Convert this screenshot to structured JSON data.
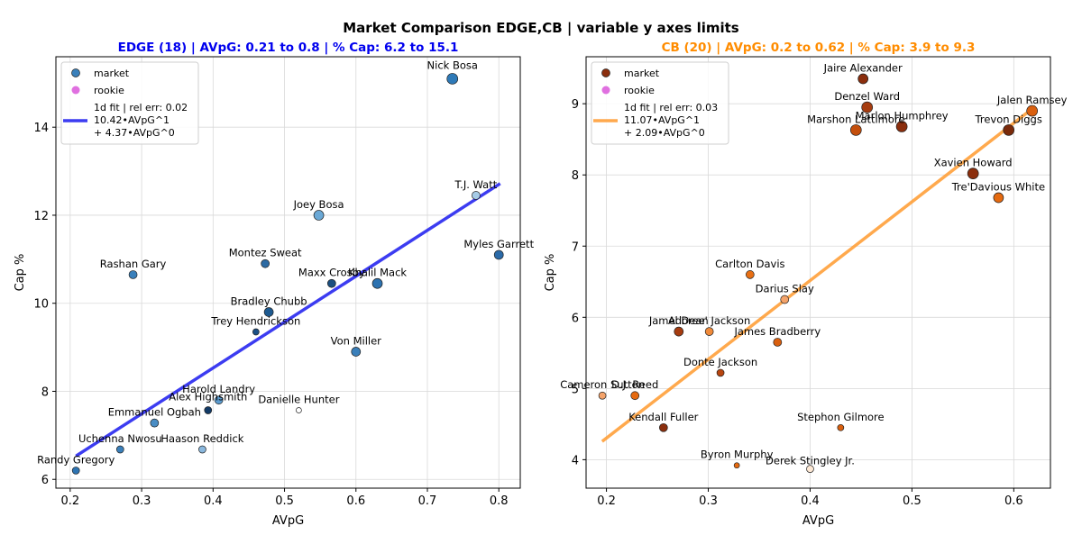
{
  "figure": {
    "title": "Market Comparison EDGE,CB | variable y axes limits"
  },
  "chart_data": [
    {
      "type": "scatter",
      "title": "EDGE (18) | AVpG: 0.21 to 0.8 | % Cap: 6.2 to 15.1",
      "title_color": "#0000ee",
      "xlabel": "AVpG",
      "ylabel": "Cap %",
      "xlim": [
        0.18,
        0.83
      ],
      "ylim": [
        5.8,
        15.6
      ],
      "xticks": [
        0.2,
        0.3,
        0.4,
        0.5,
        0.6,
        0.7,
        0.8
      ],
      "yticks": [
        6,
        8,
        10,
        12,
        14
      ],
      "grid": true,
      "legend_position": "upper left",
      "legend": {
        "market": "market",
        "rookie": "rookie",
        "fit_lines": [
          "1d fit | rel err: 0.02",
          "10.42•AVpG^1",
          "+ 4.37•AVpG^0"
        ]
      },
      "fit": {
        "color": "#1a1aee",
        "x": [
          0.21,
          0.8
        ],
        "y": [
          6.55,
          12.7
        ]
      },
      "points": [
        {
          "name": "Nick Bosa",
          "x": 0.735,
          "y": 15.1,
          "color": "#2e7ab8"
        },
        {
          "name": "T.J. Watt",
          "x": 0.768,
          "y": 12.45,
          "color": "#a6cbe6"
        },
        {
          "name": "Joey Bosa",
          "x": 0.548,
          "y": 12.0,
          "color": "#6aa8d6"
        },
        {
          "name": "Myles Garrett",
          "x": 0.8,
          "y": 11.1,
          "color": "#2a6aa8"
        },
        {
          "name": "Rashan Gary",
          "x": 0.288,
          "y": 10.65,
          "color": "#3a80bb"
        },
        {
          "name": "Montez Sweat",
          "x": 0.473,
          "y": 10.9,
          "color": "#2c6aa3"
        },
        {
          "name": "Maxx Crosby",
          "x": 0.566,
          "y": 10.45,
          "color": "#1c4f80"
        },
        {
          "name": "Khalil Mack",
          "x": 0.63,
          "y": 10.45,
          "color": "#2c72b0"
        },
        {
          "name": "Bradley Chubb",
          "x": 0.478,
          "y": 9.8,
          "color": "#1e5a90"
        },
        {
          "name": "Trey Hendrickson",
          "x": 0.46,
          "y": 9.35,
          "color": "#1a4f86"
        },
        {
          "name": "Von Miller",
          "x": 0.6,
          "y": 8.9,
          "color": "#3a7fba"
        },
        {
          "name": "Harold Landry",
          "x": 0.408,
          "y": 7.8,
          "color": "#5b9bcf"
        },
        {
          "name": "Alex Highsmith",
          "x": 0.393,
          "y": 7.57,
          "color": "#123a66"
        },
        {
          "name": "Danielle Hunter",
          "x": 0.52,
          "y": 7.57,
          "color": "#ffffff"
        },
        {
          "name": "Emmanuel Ogbah",
          "x": 0.318,
          "y": 7.28,
          "color": "#4a8dc4"
        },
        {
          "name": "Uchenna Nwosu",
          "x": 0.27,
          "y": 6.68,
          "color": "#3a7fba"
        },
        {
          "name": "Haason Reddick",
          "x": 0.385,
          "y": 6.68,
          "color": "#8ab8de"
        },
        {
          "name": "Randy Gregory",
          "x": 0.208,
          "y": 6.2,
          "color": "#2e74b2"
        }
      ]
    },
    {
      "type": "scatter",
      "title": "CB (20) | AVpG: 0.2 to 0.62 | % Cap: 3.9 to 9.3",
      "title_color": "#ff8c00",
      "xlabel": "AVpG",
      "ylabel": "Cap %",
      "xlim": [
        0.18,
        0.636
      ],
      "ylim": [
        3.6,
        9.66
      ],
      "xticks": [
        0.2,
        0.3,
        0.4,
        0.5,
        0.6
      ],
      "yticks": [
        4,
        5,
        6,
        7,
        8,
        9
      ],
      "grid": true,
      "legend_position": "upper left",
      "legend": {
        "market": "market",
        "rookie": "rookie",
        "fit_lines": [
          "1d fit | rel err: 0.03",
          "11.07•AVpG^1",
          "+ 2.09•AVpG^0"
        ]
      },
      "fit": {
        "color": "#ff9a2e",
        "x": [
          0.197,
          0.62
        ],
        "y": [
          4.27,
          8.95
        ]
      },
      "points": [
        {
          "name": "Jaire Alexander",
          "x": 0.452,
          "y": 9.35,
          "color": "#8b2e0d"
        },
        {
          "name": "Denzel Ward",
          "x": 0.456,
          "y": 8.95,
          "color": "#a63c10"
        },
        {
          "name": "Jalen Ramsey",
          "x": 0.618,
          "y": 8.9,
          "color": "#d95f0e"
        },
        {
          "name": "Marlon Humphrey",
          "x": 0.49,
          "y": 8.68,
          "color": "#8b2e0d"
        },
        {
          "name": "Marshon Lattimore",
          "x": 0.445,
          "y": 8.63,
          "color": "#c44f0c"
        },
        {
          "name": "Trevon Diggs",
          "x": 0.595,
          "y": 8.63,
          "color": "#7a2a0a"
        },
        {
          "name": "Xavien Howard",
          "x": 0.56,
          "y": 8.02,
          "color": "#8b2e0d"
        },
        {
          "name": "Tre'Davious White",
          "x": 0.585,
          "y": 7.68,
          "color": "#e56a10"
        },
        {
          "name": "Carlton Davis",
          "x": 0.341,
          "y": 6.6,
          "color": "#e86f14"
        },
        {
          "name": "Darius Slay",
          "x": 0.375,
          "y": 6.25,
          "color": "#f4a36a"
        },
        {
          "name": "Jamel Dean",
          "x": 0.271,
          "y": 5.8,
          "color": "#a63c10"
        },
        {
          "name": "Adoree' Jackson",
          "x": 0.301,
          "y": 5.8,
          "color": "#f08a3a"
        },
        {
          "name": "James Bradberry",
          "x": 0.368,
          "y": 5.65,
          "color": "#d95f0e"
        },
        {
          "name": "Donte Jackson",
          "x": 0.312,
          "y": 5.22,
          "color": "#b8450f"
        },
        {
          "name": "Cameron Sutton",
          "x": 0.196,
          "y": 4.9,
          "color": "#f4a36a"
        },
        {
          "name": "D.J. Reed",
          "x": 0.228,
          "y": 4.9,
          "color": "#e56a10"
        },
        {
          "name": "Kendall Fuller",
          "x": 0.256,
          "y": 4.45,
          "color": "#8b2e0d"
        },
        {
          "name": "Stephon Gilmore",
          "x": 0.43,
          "y": 4.45,
          "color": "#d95f0e"
        },
        {
          "name": "Byron Murphy",
          "x": 0.328,
          "y": 3.92,
          "color": "#e56a10"
        },
        {
          "name": "Derek Stingley Jr.",
          "x": 0.4,
          "y": 3.87,
          "color": "#fde8d4"
        }
      ]
    }
  ]
}
